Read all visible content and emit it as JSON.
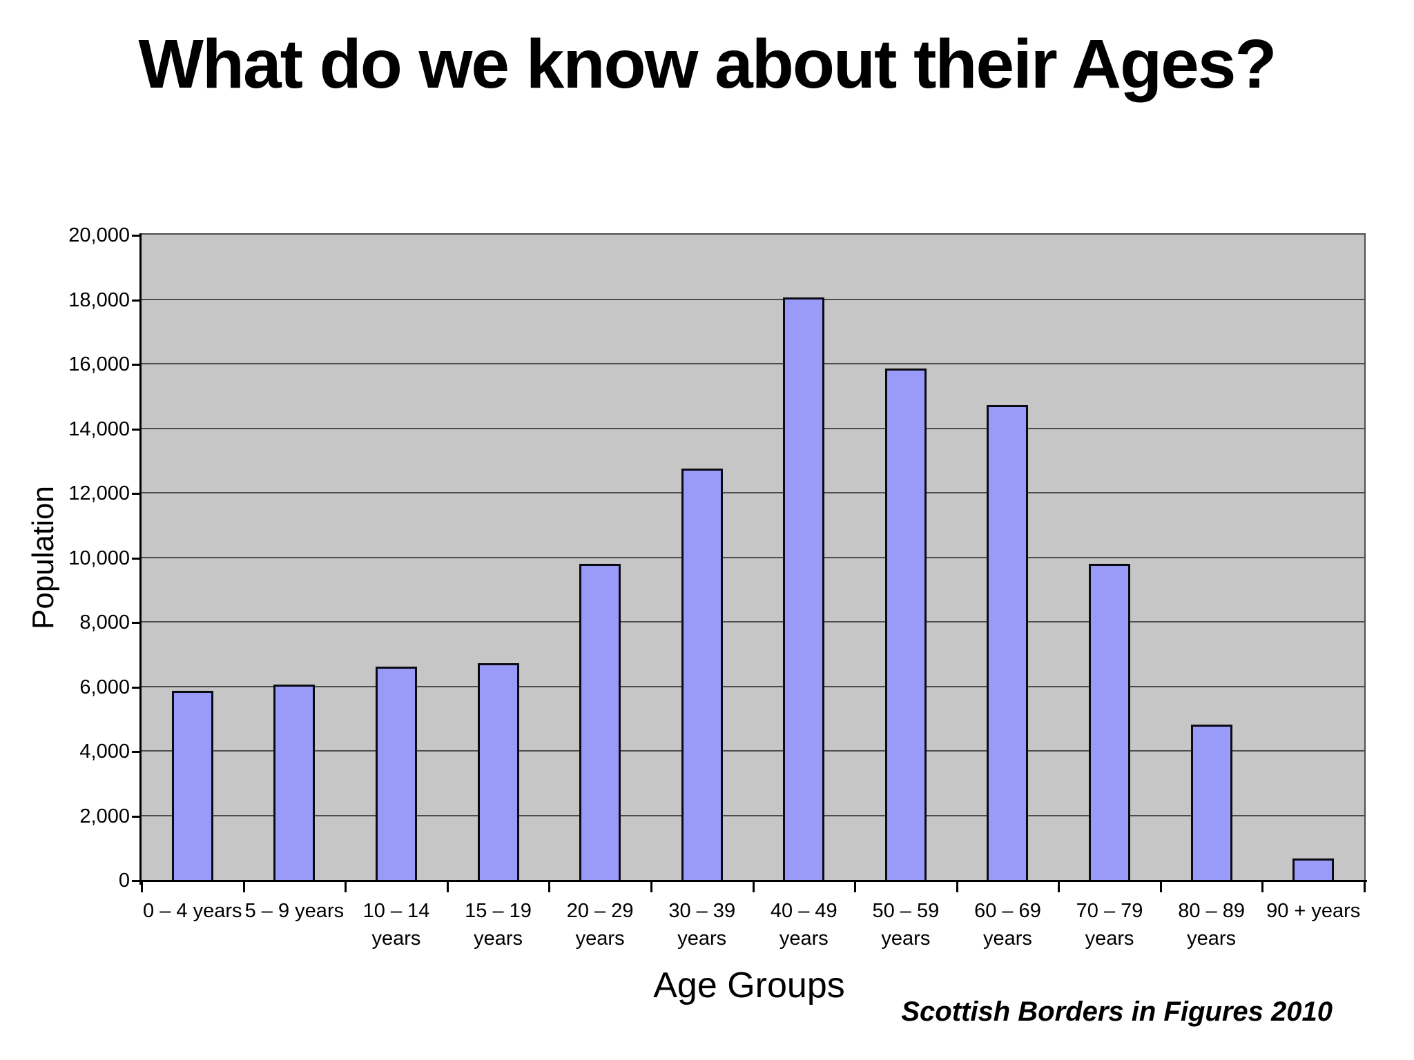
{
  "page": {
    "title": "What do we know about their Ages?",
    "source_note": "Scottish Borders in Figures 2010"
  },
  "chart_data": {
    "type": "bar",
    "title": "What do we know about their Ages?",
    "xlabel": "Age Groups",
    "ylabel": "Population",
    "categories": [
      "0 – 4 years",
      "5 – 9 years",
      "10 – 14 years",
      "15 – 19 years",
      "20 – 29 years",
      "30 – 39 years",
      "40 – 49 years",
      "50 – 59 years",
      "60 – 69 years",
      "70 – 79 years",
      "80 – 89 years",
      "90 + years"
    ],
    "values": [
      5900,
      6100,
      6650,
      6750,
      9850,
      12800,
      18100,
      15900,
      14750,
      9850,
      4850,
      700
    ],
    "ylim": [
      0,
      20000
    ],
    "y_tick_step": 2000,
    "y_tick_labels": [
      "0",
      "2,000",
      "4,000",
      "6,000",
      "8,000",
      "10,000",
      "12,000",
      "14,000",
      "16,000",
      "18,000",
      "20,000"
    ],
    "grid": true,
    "legend": false,
    "plot_bg": "#C6C6C6",
    "bar_fill": "#9A9AF8",
    "bar_border": "#0A0A12",
    "gridline_color": "#4D4D4D",
    "axis_color": "#000000"
  }
}
